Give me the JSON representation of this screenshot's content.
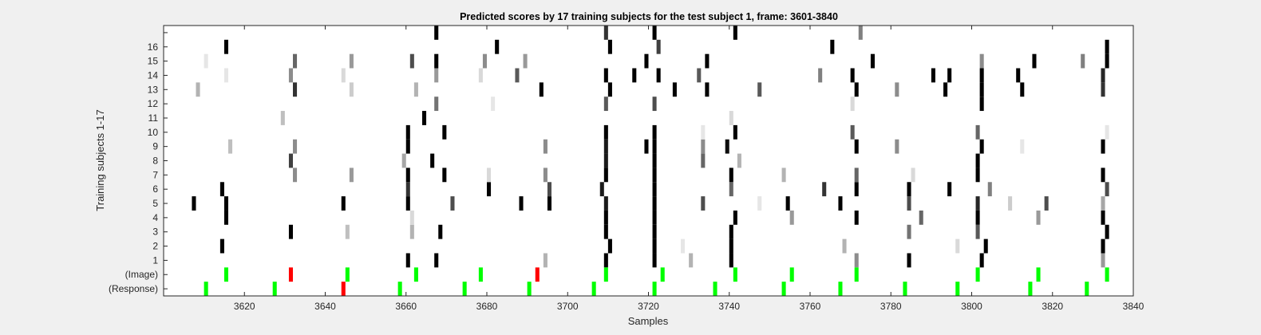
{
  "chart_data": {
    "type": "heatmap",
    "title": "Predicted scores by 17 training subjects for the test subject 1, frame: 3601-3840",
    "xlabel": "Samples",
    "ylabel": "Training subjects 1-17",
    "xlim": [
      3601,
      3840
    ],
    "x_ticks": [
      "3620",
      "3640",
      "3660",
      "3680",
      "3700",
      "3720",
      "3740",
      "3760",
      "3780",
      "3800",
      "3820",
      "3840"
    ],
    "y_labels": [
      "(Response)",
      "(Image)",
      "1",
      "2",
      "3",
      "4",
      "5",
      "6",
      "7",
      "8",
      "9",
      "10",
      "11",
      "12",
      "13",
      "14",
      "15",
      "16",
      "17"
    ],
    "colors": {
      "background": "#f0f0f0",
      "axes": "#ffffff",
      "correct": "#00ff00",
      "incorrect": "#ff0000"
    },
    "response_events": [
      {
        "x": 3611,
        "status": "correct"
      },
      {
        "x": 3628,
        "status": "correct"
      },
      {
        "x": 3645,
        "status": "incorrect"
      },
      {
        "x": 3659,
        "status": "correct"
      },
      {
        "x": 3675,
        "status": "correct"
      },
      {
        "x": 3691,
        "status": "correct"
      },
      {
        "x": 3707,
        "status": "correct"
      },
      {
        "x": 3722,
        "status": "correct"
      },
      {
        "x": 3737,
        "status": "correct"
      },
      {
        "x": 3754,
        "status": "correct"
      },
      {
        "x": 3768,
        "status": "correct"
      },
      {
        "x": 3784,
        "status": "correct"
      },
      {
        "x": 3797,
        "status": "correct"
      },
      {
        "x": 3815,
        "status": "correct"
      },
      {
        "x": 3829,
        "status": "correct"
      }
    ],
    "image_events": [
      {
        "x": 3616,
        "status": "correct"
      },
      {
        "x": 3632,
        "status": "incorrect"
      },
      {
        "x": 3646,
        "status": "correct"
      },
      {
        "x": 3663,
        "status": "correct"
      },
      {
        "x": 3679,
        "status": "correct"
      },
      {
        "x": 3693,
        "status": "incorrect"
      },
      {
        "x": 3710,
        "status": "correct"
      },
      {
        "x": 3724,
        "status": "correct"
      },
      {
        "x": 3742,
        "status": "correct"
      },
      {
        "x": 3756,
        "status": "correct"
      },
      {
        "x": 3772,
        "status": "correct"
      },
      {
        "x": 3802,
        "status": "correct"
      },
      {
        "x": 3817,
        "status": "correct"
      },
      {
        "x": 3834,
        "status": "correct"
      }
    ],
    "scores": [
      {
        "subject": 1,
        "cells": [
          [
            3661,
            0
          ],
          [
            3668,
            0
          ],
          [
            3695,
            0.7
          ],
          [
            3710,
            0
          ],
          [
            3722,
            0
          ],
          [
            3731,
            0.7
          ],
          [
            3741,
            0
          ],
          [
            3772,
            0.55
          ],
          [
            3785,
            0
          ],
          [
            3803,
            0
          ],
          [
            3833,
            0.6
          ]
        ]
      },
      {
        "subject": 2,
        "cells": [
          [
            3615,
            0
          ],
          [
            3711,
            0
          ],
          [
            3722,
            0
          ],
          [
            3729,
            0.9
          ],
          [
            3741,
            0
          ],
          [
            3769,
            0.7
          ],
          [
            3797,
            0.85
          ],
          [
            3804,
            0
          ],
          [
            3833,
            0
          ]
        ]
      },
      {
        "subject": 3,
        "cells": [
          [
            3632,
            0
          ],
          [
            3646,
            0.75
          ],
          [
            3662,
            0.7
          ],
          [
            3669,
            0
          ],
          [
            3710,
            0
          ],
          [
            3722,
            0
          ],
          [
            3741,
            0
          ],
          [
            3785,
            0.45
          ],
          [
            3802,
            0.35
          ],
          [
            3834,
            0
          ]
        ]
      },
      {
        "subject": 4,
        "cells": [
          [
            3616,
            0
          ],
          [
            3662,
            0.85
          ],
          [
            3710,
            0
          ],
          [
            3722,
            0
          ],
          [
            3742,
            0
          ],
          [
            3756,
            0.6
          ],
          [
            3772,
            0
          ],
          [
            3788,
            0.4
          ],
          [
            3802,
            0
          ],
          [
            3817,
            0.6
          ],
          [
            3833,
            0
          ]
        ]
      },
      {
        "subject": 5,
        "cells": [
          [
            3608,
            0
          ],
          [
            3616,
            0
          ],
          [
            3645,
            0
          ],
          [
            3661,
            0
          ],
          [
            3672,
            0.3
          ],
          [
            3689,
            0
          ],
          [
            3696,
            0
          ],
          [
            3710,
            0.1
          ],
          [
            3722,
            0
          ],
          [
            3734,
            0.3
          ],
          [
            3748,
            0.9
          ],
          [
            3755,
            0
          ],
          [
            3768,
            0
          ],
          [
            3785,
            0.3
          ],
          [
            3802,
            0.15
          ],
          [
            3810,
            0.8
          ],
          [
            3819,
            0.3
          ],
          [
            3833,
            0.65
          ]
        ]
      },
      {
        "subject": 6,
        "cells": [
          [
            3615,
            0
          ],
          [
            3661,
            0.2
          ],
          [
            3681,
            0
          ],
          [
            3696,
            0.3
          ],
          [
            3709,
            0.1
          ],
          [
            3722,
            0
          ],
          [
            3741,
            0.4
          ],
          [
            3764,
            0.2
          ],
          [
            3772,
            0
          ],
          [
            3785,
            0
          ],
          [
            3795,
            0
          ],
          [
            3805,
            0.5
          ],
          [
            3834,
            0.3
          ],
          [
            3841,
            0
          ]
        ]
      },
      {
        "subject": 7,
        "cells": [
          [
            3633,
            0.55
          ],
          [
            3647,
            0.6
          ],
          [
            3661,
            0
          ],
          [
            3670,
            0
          ],
          [
            3681,
            0.85
          ],
          [
            3695,
            0.55
          ],
          [
            3710,
            0
          ],
          [
            3722,
            0
          ],
          [
            3741,
            0
          ],
          [
            3754,
            0.7
          ],
          [
            3772,
            0.4
          ],
          [
            3786,
            0.85
          ],
          [
            3802,
            0
          ],
          [
            3833,
            0
          ]
        ]
      },
      {
        "subject": 8,
        "cells": [
          [
            3632,
            0.25
          ],
          [
            3660,
            0.65
          ],
          [
            3667,
            0
          ],
          [
            3710,
            0.1
          ],
          [
            3722,
            0
          ],
          [
            3734,
            0.4
          ],
          [
            3743,
            0.7
          ],
          [
            3802,
            0
          ]
        ]
      },
      {
        "subject": 9,
        "cells": [
          [
            3617,
            0.75
          ],
          [
            3633,
            0.55
          ],
          [
            3661,
            0
          ],
          [
            3695,
            0.55
          ],
          [
            3710,
            0.1
          ],
          [
            3720,
            0
          ],
          [
            3722,
            0
          ],
          [
            3734,
            0.55
          ],
          [
            3740,
            0.05
          ],
          [
            3772,
            0
          ],
          [
            3782,
            0.55
          ],
          [
            3803,
            0
          ],
          [
            3813,
            0.9
          ],
          [
            3833,
            0
          ]
        ]
      },
      {
        "subject": 10,
        "cells": [
          [
            3661,
            0
          ],
          [
            3670,
            0
          ],
          [
            3710,
            0
          ],
          [
            3722,
            0
          ],
          [
            3734,
            0.9
          ],
          [
            3742,
            0
          ],
          [
            3771,
            0.35
          ],
          [
            3802,
            0.4
          ],
          [
            3834,
            0.9
          ]
        ]
      },
      {
        "subject": 11,
        "cells": [
          [
            3630,
            0.75
          ],
          [
            3665,
            0
          ],
          [
            3741,
            0.85
          ]
        ]
      },
      {
        "subject": 12,
        "cells": [
          [
            3668,
            0.45
          ],
          [
            3682,
            0.9
          ],
          [
            3710,
            0.35
          ],
          [
            3722,
            0.3
          ],
          [
            3771,
            0.85
          ],
          [
            3803,
            0
          ]
        ]
      },
      {
        "subject": 13,
        "cells": [
          [
            3609,
            0.7
          ],
          [
            3633,
            0.2
          ],
          [
            3647,
            0.8
          ],
          [
            3663,
            0.7
          ],
          [
            3694,
            0
          ],
          [
            3711,
            0
          ],
          [
            3727,
            0
          ],
          [
            3735,
            0
          ],
          [
            3748,
            0.35
          ],
          [
            3772,
            0
          ],
          [
            3782,
            0.55
          ],
          [
            3794,
            0
          ],
          [
            3803,
            0
          ],
          [
            3813,
            0
          ],
          [
            3833,
            0.2
          ],
          [
            3841,
            0
          ]
        ]
      },
      {
        "subject": 14,
        "cells": [
          [
            3616,
            0.9
          ],
          [
            3632,
            0.55
          ],
          [
            3645,
            0.85
          ],
          [
            3668,
            0.6
          ],
          [
            3679,
            0.85
          ],
          [
            3688,
            0.35
          ],
          [
            3710,
            0
          ],
          [
            3717,
            0
          ],
          [
            3723,
            0
          ],
          [
            3733,
            0.35
          ],
          [
            3763,
            0.5
          ],
          [
            3771,
            0
          ],
          [
            3791,
            0
          ],
          [
            3795,
            0
          ],
          [
            3803,
            0
          ],
          [
            3812,
            0
          ],
          [
            3833,
            0.15
          ]
        ]
      },
      {
        "subject": 15,
        "cells": [
          [
            3611,
            0.9
          ],
          [
            3633,
            0.4
          ],
          [
            3647,
            0.6
          ],
          [
            3662,
            0.3
          ],
          [
            3668,
            0
          ],
          [
            3680,
            0.55
          ],
          [
            3690,
            0.6
          ],
          [
            3720,
            0
          ],
          [
            3735,
            0
          ],
          [
            3776,
            0
          ],
          [
            3803,
            0.55
          ],
          [
            3816,
            0
          ],
          [
            3828,
            0.5
          ],
          [
            3834,
            0
          ],
          [
            3841,
            0
          ]
        ]
      },
      {
        "subject": 16,
        "cells": [
          [
            3616,
            0
          ],
          [
            3683,
            0
          ],
          [
            3711,
            0
          ],
          [
            3723,
            0.25
          ],
          [
            3766,
            0
          ],
          [
            3834,
            0
          ]
        ]
      },
      {
        "subject": 17,
        "cells": [
          [
            3668,
            0
          ],
          [
            3710,
            0.2
          ],
          [
            3722,
            0
          ],
          [
            3742,
            0
          ],
          [
            3773,
            0.5
          ]
        ]
      }
    ]
  }
}
